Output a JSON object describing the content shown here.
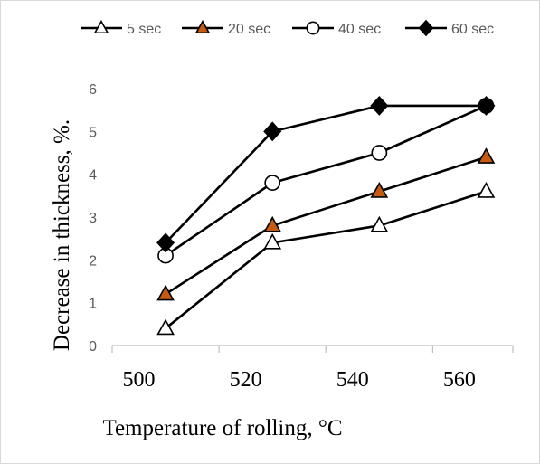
{
  "chart_data": {
    "type": "line",
    "title": "",
    "xlabel": "Temperature of rolling, °C",
    "ylabel": "Decrease in thickness, %.",
    "x": [
      505,
      525,
      545,
      565
    ],
    "x_ticks": [
      "500",
      "520",
      "540",
      "560"
    ],
    "y_ticks": [
      "0",
      "1",
      "2",
      "3",
      "4",
      "5",
      "6"
    ],
    "ylim": [
      0,
      6
    ],
    "grid": false,
    "legend_position": "top",
    "series": [
      {
        "name": "5 sec",
        "marker": "triangle-open",
        "color": "#000000",
        "marker_fill": "#ffffff",
        "values": [
          0.4,
          2.4,
          2.8,
          3.6
        ]
      },
      {
        "name": "20 sec",
        "marker": "triangle-filled",
        "color": "#000000",
        "marker_fill": "#c55a11",
        "values": [
          1.2,
          2.8,
          3.6,
          4.4
        ]
      },
      {
        "name": "40 sec",
        "marker": "circle-open",
        "color": "#000000",
        "marker_fill": "#ffffff",
        "values": [
          2.1,
          3.8,
          4.5,
          5.6
        ]
      },
      {
        "name": "60 sec",
        "marker": "diamond-filled",
        "color": "#000000",
        "marker_fill": "#000000",
        "values": [
          2.4,
          5.0,
          5.6,
          5.6
        ]
      }
    ]
  }
}
